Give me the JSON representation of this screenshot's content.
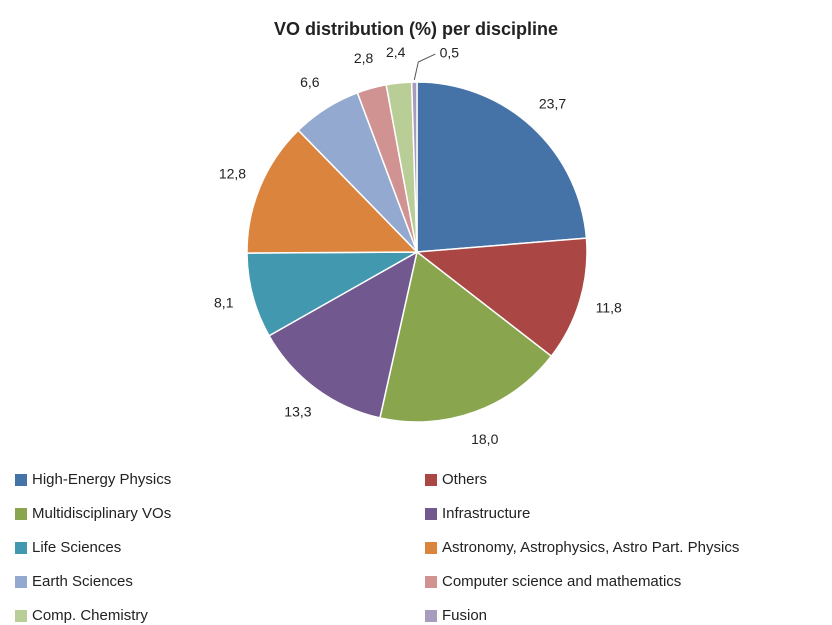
{
  "chart_data": {
    "type": "pie",
    "title": "VO distribution (%) per discipline",
    "categories": [
      "High-Energy Physics",
      "Others",
      "Multidisciplinary VOs",
      "Infrastructure",
      "Life Sciences",
      "Astronomy, Astrophysics, Astro Part. Physics",
      "Earth Sciences",
      "Computer science and mathematics",
      "Comp. Chemistry",
      "Fusion"
    ],
    "values": [
      23.7,
      11.8,
      18.0,
      13.3,
      8.1,
      12.8,
      6.6,
      2.8,
      2.4,
      0.5
    ],
    "value_labels": [
      "23,7",
      "11,8",
      "18,0",
      "13,3",
      "8,1",
      "12,8",
      "6,6",
      "2,8",
      "2,4",
      "0,5"
    ],
    "colors": [
      "#4572a7",
      "#aa4643",
      "#89a54e",
      "#71588f",
      "#4198af",
      "#db843d",
      "#93a9cf",
      "#d19392",
      "#b9cd96",
      "#a99bbd"
    ],
    "legend": "bottom"
  }
}
